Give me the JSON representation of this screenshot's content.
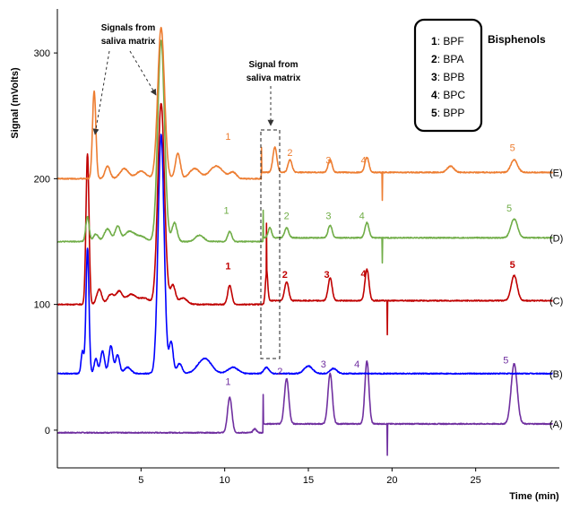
{
  "chart_data": {
    "type": "line",
    "xlabel": "Time (min)",
    "ylabel": "Signal (mVolts)",
    "xlim": [
      0,
      30
    ],
    "ylim": [
      -30,
      335
    ],
    "xticks": [
      5,
      10,
      15,
      20,
      25
    ],
    "yticks": [
      0,
      100,
      200,
      300
    ],
    "grid": false,
    "legend": {
      "placement": "top-right",
      "title": "Bisphenols",
      "entries": [
        {
          "num": "1",
          "name": "BPF"
        },
        {
          "num": "2",
          "name": "BPA"
        },
        {
          "num": "3",
          "name": "BPB"
        },
        {
          "num": "4",
          "name": "BPC"
        },
        {
          "num": "5",
          "name": "BPP"
        }
      ]
    },
    "annotations": [
      {
        "line1": "Signals from",
        "line2": "saliva matrix"
      },
      {
        "line1": "Signal from",
        "line2": "saliva matrix"
      }
    ],
    "peak_times": {
      "1": 10.3,
      "2": 13.7,
      "3": 16.3,
      "4": 18.5,
      "5": 27.3
    },
    "series": [
      {
        "name": "(A)",
        "color": "#7030a0",
        "baseline": -2,
        "base_after_step": 5,
        "peaks": [
          {
            "x": 10.3,
            "h": 28,
            "w": 0.13
          },
          {
            "x": 11.8,
            "h": 3,
            "w": 0.1
          },
          {
            "x": 13.7,
            "h": 36,
            "w": 0.13
          },
          {
            "x": 16.3,
            "h": 40,
            "w": 0.13
          },
          {
            "x": 18.5,
            "h": 50,
            "w": 0.12
          },
          {
            "x": 27.3,
            "h": 48,
            "w": 0.18
          }
        ],
        "step": {
          "x": 12.3,
          "spike": 30
        },
        "dip": {
          "x": 19.7,
          "depth": -25
        },
        "peak_labels": [
          {
            "text": "1",
            "x": 10.2,
            "y": 36
          },
          {
            "text": "2",
            "x": 13.3,
            "y": 44
          },
          {
            "text": "3",
            "x": 15.9,
            "y": 50
          },
          {
            "text": "4",
            "x": 17.9,
            "y": 50
          },
          {
            "text": "5",
            "x": 26.8,
            "y": 53
          }
        ]
      },
      {
        "name": "(B)",
        "color": "#0000ff",
        "baseline": 45,
        "base_after_step": 45,
        "peaks": [
          {
            "x": 1.5,
            "h": 18,
            "w": 0.08
          },
          {
            "x": 1.8,
            "h": 100,
            "w": 0.09
          },
          {
            "x": 2.3,
            "h": 12,
            "w": 0.1
          },
          {
            "x": 2.7,
            "h": 18,
            "w": 0.12
          },
          {
            "x": 3.2,
            "h": 22,
            "w": 0.12
          },
          {
            "x": 3.6,
            "h": 15,
            "w": 0.12
          },
          {
            "x": 4.2,
            "h": 5,
            "w": 0.2
          },
          {
            "x": 6.2,
            "h": 190,
            "w": 0.18
          },
          {
            "x": 6.8,
            "h": 25,
            "w": 0.12
          },
          {
            "x": 7.3,
            "h": 8,
            "w": 0.15
          },
          {
            "x": 8.8,
            "h": 12,
            "w": 0.4
          },
          {
            "x": 10.5,
            "h": 5,
            "w": 0.3
          },
          {
            "x": 12.5,
            "h": 5,
            "w": 0.15
          },
          {
            "x": 15.0,
            "h": 6,
            "w": 0.25
          },
          {
            "x": 16.5,
            "h": 4,
            "w": 0.2
          }
        ],
        "peak_labels": []
      },
      {
        "name": "(C)",
        "color": "#c00000",
        "baseline": 100,
        "base_after_step": 103,
        "peaks": [
          {
            "x": 1.8,
            "h": 120,
            "w": 0.09
          },
          {
            "x": 2.5,
            "h": 12,
            "w": 0.15
          },
          {
            "x": 3.2,
            "h": 8,
            "w": 0.2
          },
          {
            "x": 3.7,
            "h": 10,
            "w": 0.18
          },
          {
            "x": 4.4,
            "h": 8,
            "w": 0.3
          },
          {
            "x": 5.2,
            "h": 5,
            "w": 0.3
          },
          {
            "x": 6.2,
            "h": 160,
            "w": 0.2
          },
          {
            "x": 6.9,
            "h": 15,
            "w": 0.15
          },
          {
            "x": 7.5,
            "h": 5,
            "w": 0.25
          },
          {
            "x": 10.3,
            "h": 15,
            "w": 0.12
          },
          {
            "x": 12.5,
            "h": 25,
            "w": 0.07
          },
          {
            "x": 13.7,
            "h": 15,
            "w": 0.12
          },
          {
            "x": 16.3,
            "h": 18,
            "w": 0.12
          },
          {
            "x": 18.5,
            "h": 25,
            "w": 0.12
          },
          {
            "x": 27.3,
            "h": 20,
            "w": 0.18
          }
        ],
        "step": {
          "x": 12.5,
          "spike": 40
        },
        "dip": {
          "x": 19.7,
          "depth": -27
        },
        "peak_labels": [
          {
            "text": "1",
            "x": 10.2,
            "y": 128
          },
          {
            "text": "2",
            "x": 13.6,
            "y": 121
          },
          {
            "text": "3",
            "x": 16.1,
            "y": 121
          },
          {
            "text": "4",
            "x": 18.3,
            "y": 122
          },
          {
            "text": "5",
            "x": 27.2,
            "y": 129
          }
        ]
      },
      {
        "name": "(D)",
        "color": "#70ad47",
        "baseline": 150,
        "base_after_step": 153,
        "peaks": [
          {
            "x": 1.8,
            "h": 20,
            "w": 0.1
          },
          {
            "x": 2.3,
            "h": 6,
            "w": 0.15
          },
          {
            "x": 3.0,
            "h": 10,
            "w": 0.2
          },
          {
            "x": 3.6,
            "h": 12,
            "w": 0.15
          },
          {
            "x": 4.3,
            "h": 8,
            "w": 0.3
          },
          {
            "x": 5.0,
            "h": 4,
            "w": 0.3
          },
          {
            "x": 6.2,
            "h": 160,
            "w": 0.2
          },
          {
            "x": 7.0,
            "h": 15,
            "w": 0.15
          },
          {
            "x": 8.5,
            "h": 5,
            "w": 0.25
          },
          {
            "x": 10.3,
            "h": 8,
            "w": 0.12
          },
          {
            "x": 12.7,
            "h": 8,
            "w": 0.1
          },
          {
            "x": 13.7,
            "h": 8,
            "w": 0.12
          },
          {
            "x": 16.3,
            "h": 10,
            "w": 0.12
          },
          {
            "x": 18.5,
            "h": 12,
            "w": 0.12
          },
          {
            "x": 27.3,
            "h": 15,
            "w": 0.2
          }
        ],
        "step": {
          "x": 12.3,
          "spike": 25
        },
        "dip": {
          "x": 19.4,
          "depth": -20
        },
        "peak_labels": [
          {
            "text": "1",
            "x": 10.1,
            "y": 172
          },
          {
            "text": "2",
            "x": 13.7,
            "y": 168
          },
          {
            "text": "3",
            "x": 16.2,
            "y": 168
          },
          {
            "text": "4",
            "x": 18.2,
            "y": 168
          },
          {
            "text": "5",
            "x": 27.0,
            "y": 174
          }
        ]
      },
      {
        "name": "(E)",
        "color": "#ed7d31",
        "baseline": 200,
        "base_after_step": 205,
        "peaks": [
          {
            "x": 2.2,
            "h": 70,
            "w": 0.1
          },
          {
            "x": 3.0,
            "h": 10,
            "w": 0.15
          },
          {
            "x": 4.0,
            "h": 8,
            "w": 0.25
          },
          {
            "x": 5.0,
            "h": 6,
            "w": 0.3
          },
          {
            "x": 6.2,
            "h": 120,
            "w": 0.2
          },
          {
            "x": 7.2,
            "h": 20,
            "w": 0.15
          },
          {
            "x": 8.2,
            "h": 8,
            "w": 0.3
          },
          {
            "x": 9.5,
            "h": 10,
            "w": 0.4
          },
          {
            "x": 10.5,
            "h": 5,
            "w": 0.2
          },
          {
            "x": 13.0,
            "h": 20,
            "w": 0.12
          },
          {
            "x": 13.9,
            "h": 10,
            "w": 0.12
          },
          {
            "x": 16.3,
            "h": 10,
            "w": 0.12
          },
          {
            "x": 18.5,
            "h": 12,
            "w": 0.12
          },
          {
            "x": 23.5,
            "h": 5,
            "w": 0.2
          },
          {
            "x": 27.3,
            "h": 10,
            "w": 0.2
          }
        ],
        "step": {
          "x": 12.2,
          "spike": 25
        },
        "dip": {
          "x": 19.4,
          "depth": -22
        },
        "peak_labels": [
          {
            "text": "1",
            "x": 10.2,
            "y": 231
          },
          {
            "text": "2",
            "x": 13.9,
            "y": 218
          },
          {
            "text": "3",
            "x": 16.2,
            "y": 212
          },
          {
            "text": "4",
            "x": 18.3,
            "y": 212
          },
          {
            "text": "5",
            "x": 27.2,
            "y": 222
          }
        ]
      }
    ]
  }
}
